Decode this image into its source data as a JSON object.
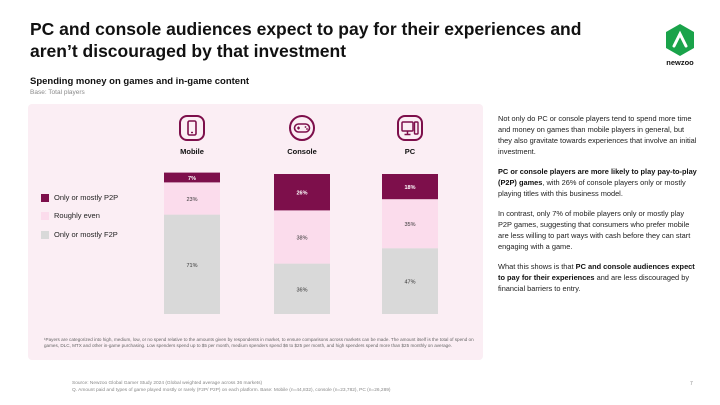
{
  "title": "PC and console audiences expect to pay for their experiences and aren’t discouraged by that investment",
  "logo": {
    "name": "newzoo",
    "color": "#1aa34a"
  },
  "subtitle": "Spending money on games and in-game content",
  "base": "Base: Total players",
  "chart_data": {
    "type": "bar",
    "stacked": true,
    "percent": true,
    "categories": [
      "Mobile",
      "Console",
      "PC"
    ],
    "series": [
      {
        "name": "Only or mostly F2P",
        "color": "#d9d9d9",
        "values": [
          71,
          36,
          47
        ],
        "labels": [
          "71%",
          "36%",
          "47%"
        ]
      },
      {
        "name": "Roughly even",
        "color": "#fbdcec",
        "values": [
          23,
          38,
          35
        ],
        "labels": [
          "23%",
          "38%",
          "35%"
        ]
      },
      {
        "name": "Only or mostly P2P",
        "color": "#7d0f4b",
        "values": [
          7,
          26,
          18
        ],
        "labels": [
          "7%",
          "26%",
          "18%"
        ]
      }
    ],
    "legend": [
      "Only or mostly P2P",
      "Roughly even",
      "Only or mostly F2P"
    ],
    "legend_position": "left",
    "ylim": [
      0,
      100
    ]
  },
  "colors": {
    "accent": "#7d0f4b",
    "icon": "#7d0f4b"
  },
  "footnote": "¹Payers are categorized into high, medium, low, or no spend relative to the amounts given by respondents in market, to ensure comparisons across markets can be made. The amount itself is the total of spend on games, DLC, MTX and other in-game purchasing. Low spenders spend up to $5 per month, medium spenders spend $6 to $25 per month, and high spenders spend more than $25 monthly on average.",
  "text": {
    "p1": "Not only do PC or console players tend to spend more time and money on games than mobile players in general, but they also gravitate towards experiences that involve an initial investment.",
    "p2_bold": "PC or console players are more likely to play pay-to-play (P2P) games",
    "p2_rest": ", with 26% of console players only or mostly playing titles with this business model.",
    "p3": "In contrast, only 7% of mobile players only or mostly play P2P games, suggesting that consumers who prefer mobile are less willing to part ways with cash before they can start engaging with a game.",
    "p4_start": "What this shows is that ",
    "p4_bold": "PC and console audiences expect to pay for their experiences",
    "p4_end": " and are less discouraged by financial barriers to entry."
  },
  "source": {
    "line1": "Source: Newzoo Global Gamer Study 2024 (Global weighted average across 36 markets)",
    "line2": "Q. Amount paid and types of game played mostly or rarely (F2P/ P2P) on each platform. Base: Mobile (n=44,832), console (n=23,782), PC (n=26,289)"
  },
  "page_number": "7"
}
